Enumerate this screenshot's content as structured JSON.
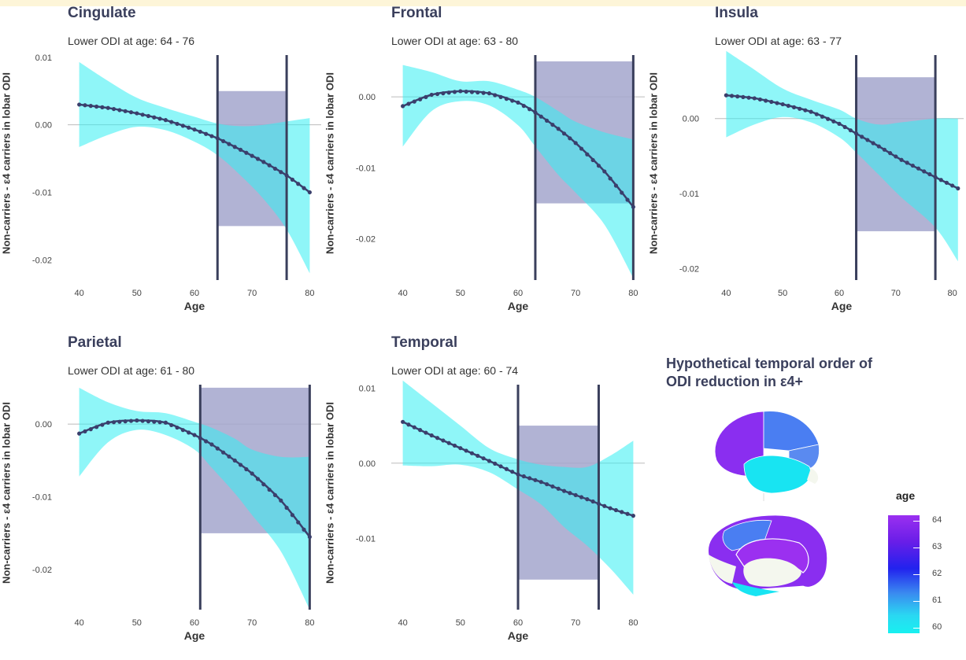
{
  "chart_data": [
    {
      "type": "line",
      "title": "Cingulate",
      "subtitle": "Lower ODI at age: 64 - 76",
      "xlabel": "Age",
      "ylabel": "Non-carriers - ε4 carriers in lobar ODI",
      "xlim": [
        38,
        82
      ],
      "ylim": [
        -0.023,
        0.0115
      ],
      "xticks": [
        40,
        50,
        60,
        70,
        80
      ],
      "yticks": [
        0.01,
        0.0,
        -0.01,
        -0.02
      ],
      "ytick_labels": [
        "0.01",
        "0.00",
        "-0.01",
        "-0.02"
      ],
      "series": [
        {
          "x": [
            40,
            45,
            50,
            55,
            60,
            64,
            68,
            72,
            76,
            80
          ],
          "y": [
            0.003,
            0.0025,
            0.0017,
            0.0007,
            -0.0007,
            -0.002,
            -0.0037,
            -0.0055,
            -0.0075,
            -0.01
          ],
          "lower": [
            -0.0033,
            -0.0015,
            -0.0003,
            -0.0008,
            -0.0025,
            -0.0045,
            -0.0075,
            -0.011,
            -0.0155,
            -0.022
          ],
          "upper": [
            0.0093,
            0.0065,
            0.004,
            0.0025,
            0.0012,
            0.0002,
            -0.0002,
            0.0,
            0.0005,
            0.001
          ]
        }
      ],
      "region": {
        "x": [
          64,
          76
        ],
        "y": [
          -0.015,
          0.005
        ]
      }
    },
    {
      "type": "line",
      "title": "Frontal",
      "subtitle": "Lower ODI at age: 63 - 80",
      "xlabel": "Age",
      "ylabel": "Non-carriers - ε4 carriers in lobar ODI",
      "xlim": [
        38,
        82
      ],
      "ylim": [
        -0.0258,
        0.007
      ],
      "xticks": [
        40,
        50,
        60,
        70,
        80
      ],
      "yticks": [
        0.0,
        -0.01,
        -0.02
      ],
      "ytick_labels": [
        "0.00",
        "-0.01",
        "-0.02"
      ],
      "series": [
        {
          "x": [
            40,
            45,
            50,
            55,
            60,
            63,
            67,
            70,
            75,
            80
          ],
          "y": [
            -0.0013,
            0.0003,
            0.0008,
            0.0005,
            -0.0008,
            -0.0022,
            -0.0045,
            -0.0065,
            -0.0105,
            -0.0155
          ],
          "lower": [
            -0.007,
            -0.002,
            -0.0006,
            -0.0012,
            -0.004,
            -0.007,
            -0.011,
            -0.0135,
            -0.018,
            -0.0255
          ],
          "upper": [
            0.0045,
            0.0035,
            0.0022,
            0.0022,
            0.001,
            0.0,
            -0.002,
            -0.0035,
            -0.005,
            -0.006
          ]
        }
      ],
      "region": {
        "x": [
          63,
          80
        ],
        "y": [
          -0.015,
          0.005
        ]
      }
    },
    {
      "type": "line",
      "title": "Insula",
      "subtitle": "Lower ODI at age: 63 - 77",
      "xlabel": "Age",
      "ylabel": "Non-carriers - ε4 carriers in lobar ODI",
      "xlim": [
        38,
        82
      ],
      "ylim": [
        -0.0215,
        0.0095
      ],
      "xticks": [
        40,
        50,
        60,
        70,
        80
      ],
      "yticks": [
        0.0,
        -0.01,
        -0.02
      ],
      "ytick_labels": [
        "0.00",
        "-0.01",
        "-0.02"
      ],
      "series": [
        {
          "x": [
            40,
            45,
            50,
            55,
            60,
            63,
            67,
            71,
            77,
            81
          ],
          "y": [
            0.0031,
            0.0027,
            0.0019,
            0.0009,
            -0.0007,
            -0.002,
            -0.0037,
            -0.0055,
            -0.0078,
            -0.0093
          ],
          "lower": [
            -0.0025,
            -0.0008,
            0.0002,
            -0.0005,
            -0.0025,
            -0.0045,
            -0.0075,
            -0.0105,
            -0.0145,
            -0.019
          ],
          "upper": [
            0.009,
            0.0065,
            0.004,
            0.0025,
            0.0012,
            0.0,
            -0.0008,
            -0.0005,
            0.0,
            0.0
          ]
        }
      ],
      "region": {
        "x": [
          63,
          77
        ],
        "y": [
          -0.015,
          0.0055
        ]
      }
    },
    {
      "type": "line",
      "title": "Parietal",
      "subtitle": "Lower ODI at age: 61 - 80",
      "xlabel": "Age",
      "ylabel": "Non-carriers - ε4 carriers in lobar ODI",
      "xlim": [
        38,
        82
      ],
      "ylim": [
        -0.0255,
        0.0065
      ],
      "xticks": [
        40,
        50,
        60,
        70,
        80
      ],
      "yticks": [
        0.0,
        -0.01,
        -0.02
      ],
      "ytick_labels": [
        "0.00",
        "-0.01",
        "-0.02"
      ],
      "series": [
        {
          "x": [
            40,
            45,
            50,
            55,
            60,
            63,
            67,
            70,
            75,
            80
          ],
          "y": [
            -0.0013,
            0.0002,
            0.0005,
            0.0002,
            -0.0015,
            -0.0028,
            -0.005,
            -0.0068,
            -0.0105,
            -0.0155
          ],
          "lower": [
            -0.0072,
            -0.0025,
            -0.0008,
            -0.0015,
            -0.0035,
            -0.006,
            -0.0095,
            -0.0125,
            -0.0175,
            -0.0255
          ],
          "upper": [
            0.005,
            0.003,
            0.0018,
            0.0015,
            0.0003,
            -0.0005,
            -0.002,
            -0.0035,
            -0.0045,
            -0.0045
          ]
        }
      ],
      "region": {
        "x": [
          61,
          80
        ],
        "y": [
          -0.015,
          0.005
        ]
      }
    },
    {
      "type": "line",
      "title": "Temporal",
      "subtitle": "Lower ODI at age: 60 - 74",
      "xlabel": "Age",
      "ylabel": "Non-carriers - ε4 carriers in lobar ODI",
      "xlim": [
        38,
        82
      ],
      "ylim": [
        -0.0195,
        0.0115
      ],
      "xticks": [
        40,
        50,
        60,
        70,
        80
      ],
      "yticks": [
        0.01,
        0.0,
        -0.01
      ],
      "ytick_labels": [
        "0.01",
        "0.00",
        "-0.01"
      ],
      "series": [
        {
          "x": [
            40,
            45,
            50,
            55,
            60,
            64,
            68,
            72,
            76,
            80
          ],
          "y": [
            0.0055,
            0.0037,
            0.002,
            0.0003,
            -0.0015,
            -0.0025,
            -0.0037,
            -0.0048,
            -0.006,
            -0.007
          ],
          "lower": [
            -0.0003,
            -0.0004,
            -0.0002,
            -0.0012,
            -0.0035,
            -0.0055,
            -0.0085,
            -0.011,
            -0.014,
            -0.0175
          ],
          "upper": [
            0.011,
            0.008,
            0.005,
            0.002,
            0.0005,
            -0.0002,
            -0.0005,
            -0.0005,
            0.001,
            0.003
          ]
        }
      ],
      "region": {
        "x": [
          60,
          74
        ],
        "y": [
          -0.0155,
          0.005
        ]
      }
    }
  ],
  "brain_panel": {
    "title_line1": "Hypothetical temporal order of",
    "title_line2": "ODI reduction in ε4+",
    "legend_title": "age",
    "legend_ticks": [
      "64",
      "63",
      "62",
      "61",
      "60"
    ],
    "lobe_colors": {
      "frontal": "#8a2ef0",
      "cingulate": "#9b30f0",
      "parietal": "#4a7ef2",
      "insula": "#5a8af0",
      "temporal": "#18e4f2",
      "unshaded": "#f4f7ee"
    }
  },
  "colors": {
    "band": "#33eef2",
    "region": "#a3a6cc",
    "line": "#3a3f6c",
    "vline": "#3a3f5c",
    "zero": "#bbbbbb"
  }
}
